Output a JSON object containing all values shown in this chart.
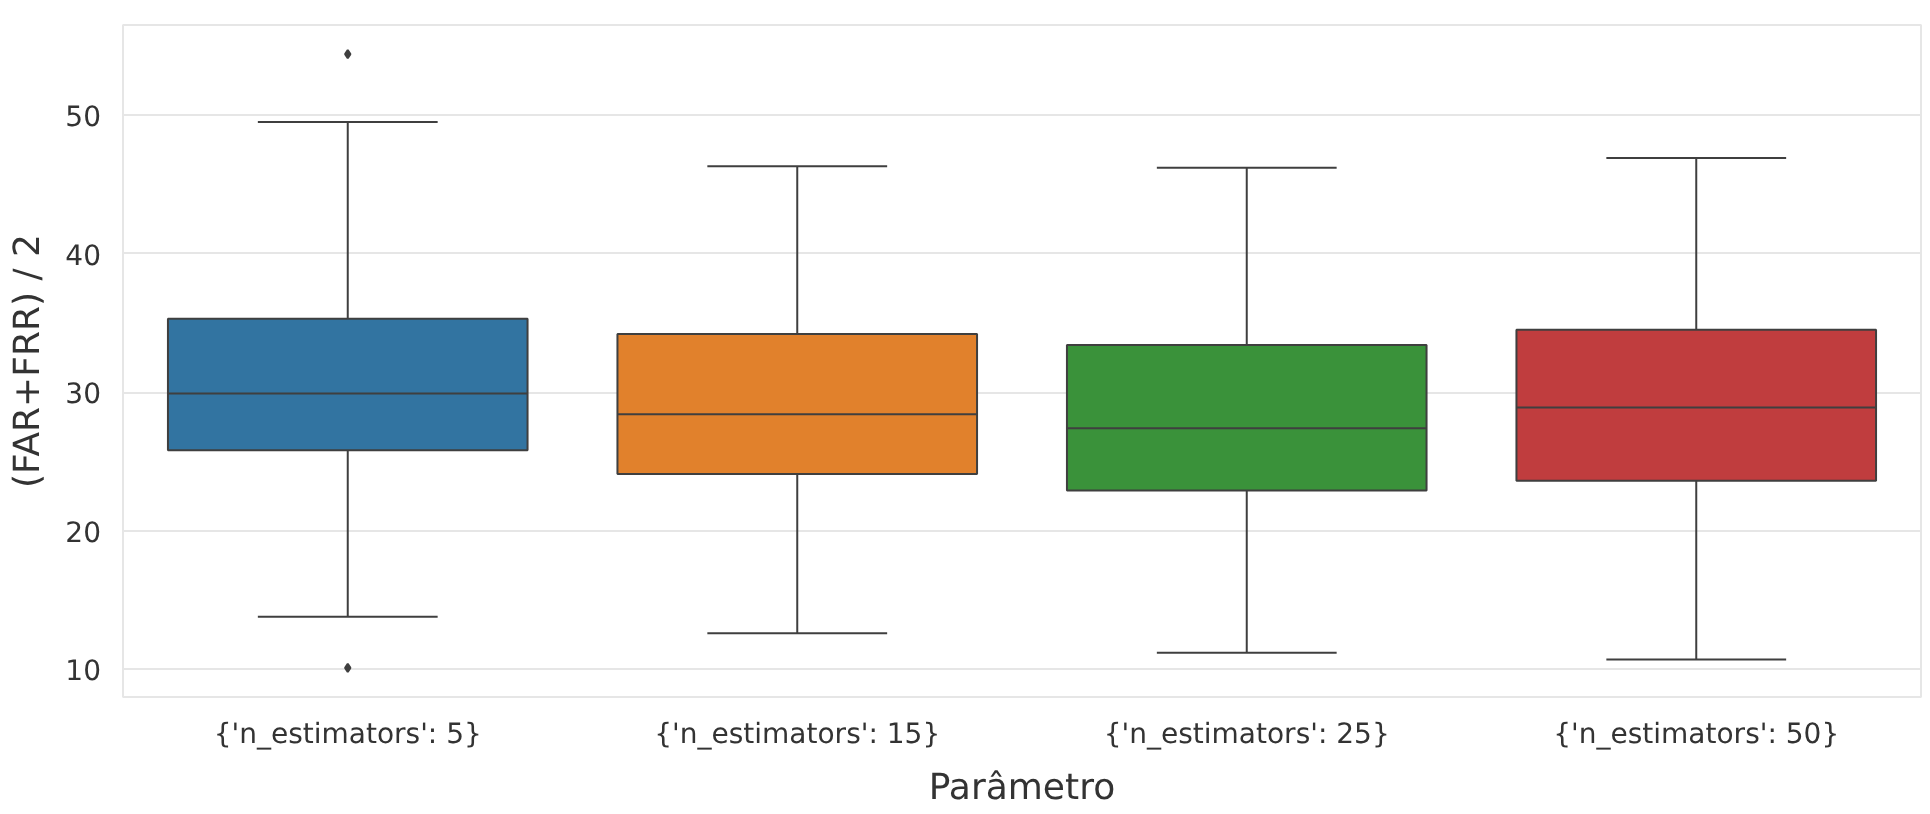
{
  "chart_data": {
    "type": "box",
    "xlabel": "Parâmetro",
    "ylabel": "(FAR+FRR) / 2",
    "categories": [
      "{'n_estimators': 5}",
      "{'n_estimators': 15}",
      "{'n_estimators': 25}",
      "{'n_estimators': 50}"
    ],
    "colors": [
      "#3274a1",
      "#e1812c",
      "#3a923a",
      "#c03d3e"
    ],
    "boxes": [
      {
        "low": 13.8,
        "q1": 25.8,
        "median": 29.9,
        "q3": 35.3,
        "high": 49.5,
        "outliers": [
          54.4,
          10.1
        ]
      },
      {
        "low": 12.6,
        "q1": 24.1,
        "median": 28.4,
        "q3": 34.2,
        "high": 46.3
      },
      {
        "low": 11.2,
        "q1": 22.9,
        "median": 27.4,
        "q3": 33.4,
        "high": 46.2
      },
      {
        "low": 10.7,
        "q1": 23.6,
        "median": 28.9,
        "q3": 34.5,
        "high": 46.9
      }
    ],
    "ylim": [
      8.0,
      56.5
    ],
    "yticks": [
      10,
      20,
      30,
      40,
      50
    ],
    "grid": "y",
    "marker": "diamond"
  }
}
